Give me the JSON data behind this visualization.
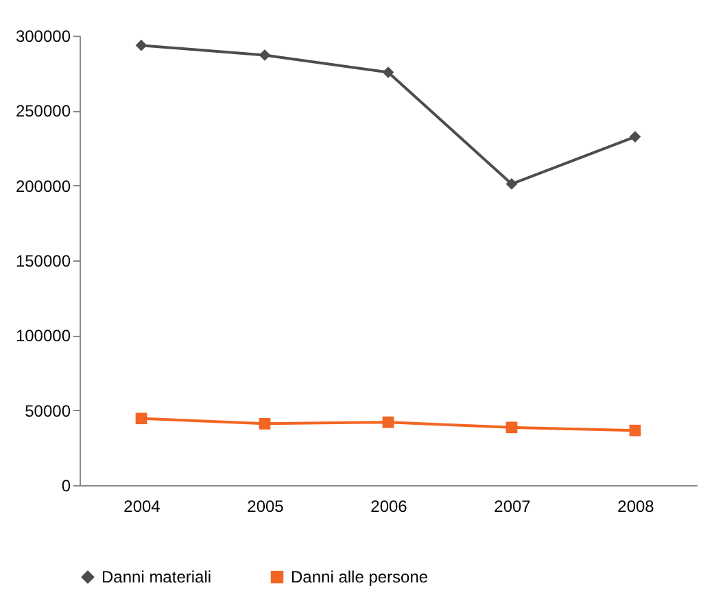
{
  "chart_data": {
    "type": "line",
    "categories": [
      "2004",
      "2005",
      "2006",
      "2007",
      "2008"
    ],
    "series": [
      {
        "name": "Danni materiali",
        "color": "#4d4d4d",
        "marker": "diamond",
        "values": [
          293500,
          287000,
          275500,
          201000,
          232500
        ]
      },
      {
        "name": "Danni alle persone",
        "color": "#f26522",
        "marker": "square",
        "values": [
          44500,
          41000,
          42000,
          38500,
          36500
        ]
      }
    ],
    "ylim": [
      0,
      300000
    ],
    "yticks": [
      0,
      50000,
      100000,
      150000,
      200000,
      250000,
      300000
    ],
    "grid": false,
    "legend": "bottom"
  }
}
